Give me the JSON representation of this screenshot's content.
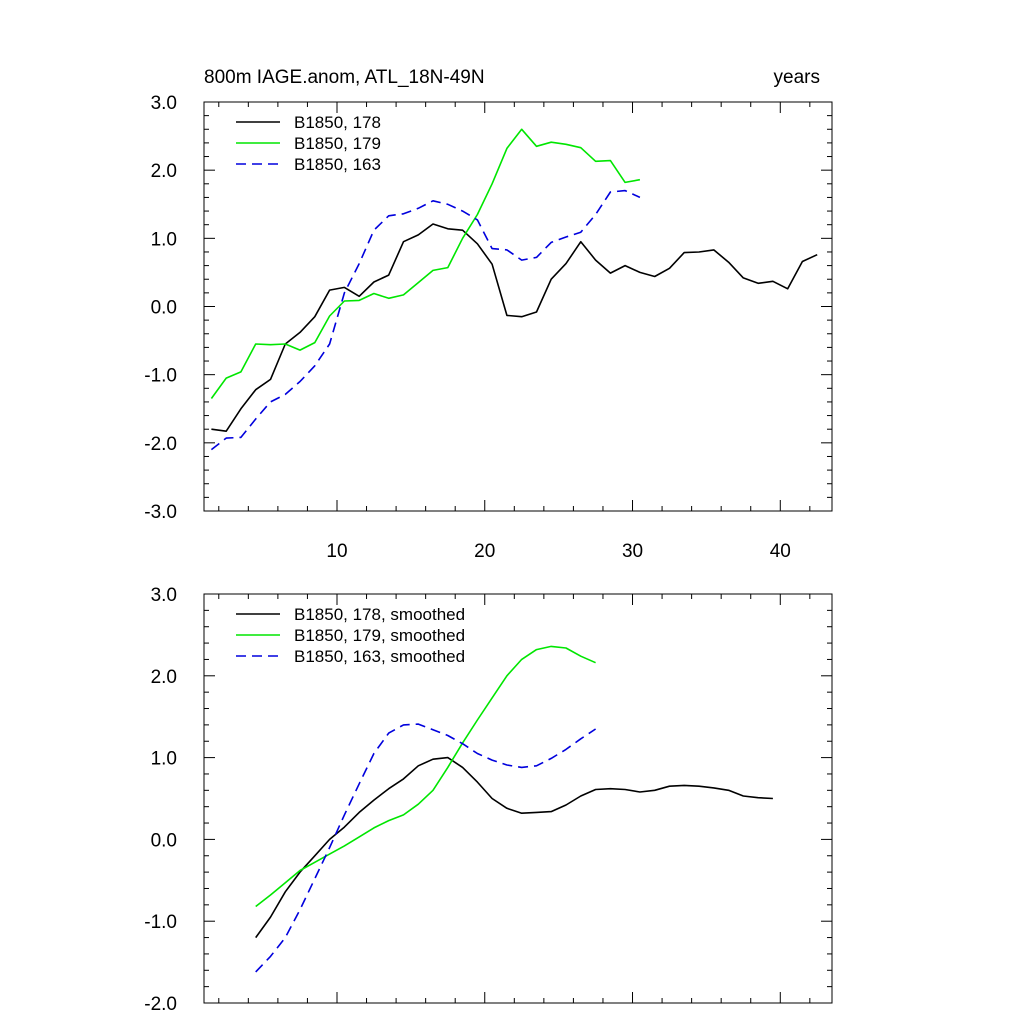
{
  "chart_data": [
    {
      "type": "line",
      "title_left": "800m IAGE.anom, ATL_18N-49N",
      "title_right": "years",
      "xlim": [
        1,
        43.5
      ],
      "ylim": [
        -3.0,
        3.0
      ],
      "x_major_ticks": [
        10,
        20,
        30,
        40
      ],
      "x_tick_labels": [
        "10",
        "20",
        "30",
        "40"
      ],
      "y_major_ticks": [
        -3.0,
        -2.0,
        -1.0,
        0.0,
        1.0,
        2.0,
        3.0
      ],
      "y_tick_labels": [
        "-3.0",
        "-2.0",
        "-1.0",
        "0.0",
        "1.0",
        "2.0",
        "3.0"
      ],
      "legend_position": "top-left",
      "grid": false,
      "series": [
        {
          "name": "B1850, 178",
          "color": "#000000",
          "dash": "solid",
          "x": [
            1.5,
            2.5,
            3.5,
            4.5,
            5.5,
            6.5,
            7.5,
            8.5,
            9.5,
            10.5,
            11.5,
            12.5,
            13.5,
            14.5,
            15.5,
            16.5,
            17.5,
            18.5,
            19.5,
            20.5,
            21.5,
            22.5,
            23.5,
            24.5,
            25.5,
            26.5,
            27.5,
            28.5,
            29.5,
            30.5,
            31.5,
            32.5,
            33.5,
            34.5,
            35.5,
            36.5,
            37.5,
            38.5,
            39.5,
            40.5,
            41.5,
            42.5
          ],
          "y": [
            -1.8,
            -1.83,
            -1.5,
            -1.22,
            -1.07,
            -0.55,
            -0.38,
            -0.15,
            0.24,
            0.28,
            0.15,
            0.36,
            0.46,
            0.95,
            1.05,
            1.21,
            1.14,
            1.12,
            0.92,
            0.62,
            -0.13,
            -0.15,
            -0.08,
            0.4,
            0.63,
            0.95,
            0.68,
            0.49,
            0.6,
            0.5,
            0.44,
            0.56,
            0.79,
            0.8,
            0.83,
            0.65,
            0.42,
            0.34,
            0.37,
            0.26,
            0.66,
            0.76
          ]
        },
        {
          "name": "B1850, 179",
          "color": "#00e600",
          "dash": "solid",
          "x": [
            1.5,
            2.5,
            3.5,
            4.5,
            5.5,
            6.5,
            7.5,
            8.5,
            9.5,
            10.5,
            11.5,
            12.5,
            13.5,
            14.5,
            15.5,
            16.5,
            17.5,
            18.5,
            19.5,
            20.5,
            21.5,
            22.5,
            23.5,
            24.5,
            25.5,
            26.5,
            27.5,
            28.5,
            29.5,
            30.5
          ],
          "y": [
            -1.35,
            -1.05,
            -0.96,
            -0.55,
            -0.56,
            -0.55,
            -0.64,
            -0.53,
            -0.14,
            0.08,
            0.09,
            0.19,
            0.12,
            0.17,
            0.35,
            0.53,
            0.57,
            1.0,
            1.35,
            1.8,
            2.32,
            2.6,
            2.35,
            2.41,
            2.38,
            2.33,
            2.13,
            2.14,
            1.82,
            1.86
          ]
        },
        {
          "name": "B1850, 163",
          "color": "#0000dd",
          "dash": "dashed",
          "x": [
            1.5,
            2.5,
            3.5,
            4.5,
            5.5,
            6.5,
            7.5,
            8.5,
            9.5,
            10.5,
            11.5,
            12.5,
            13.5,
            14.5,
            15.5,
            16.5,
            17.5,
            18.5,
            19.5,
            20.5,
            21.5,
            22.5,
            23.5,
            24.5,
            25.5,
            26.5,
            27.5,
            28.5,
            29.5,
            30.5
          ],
          "y": [
            -2.1,
            -1.93,
            -1.92,
            -1.65,
            -1.4,
            -1.29,
            -1.1,
            -0.87,
            -0.55,
            0.2,
            0.63,
            1.12,
            1.33,
            1.36,
            1.44,
            1.55,
            1.5,
            1.4,
            1.27,
            0.85,
            0.83,
            0.68,
            0.72,
            0.94,
            1.02,
            1.09,
            1.35,
            1.68,
            1.7,
            1.6
          ]
        }
      ]
    },
    {
      "type": "line",
      "xlim": [
        1,
        43.5
      ],
      "ylim": [
        -2.0,
        3.0
      ],
      "x_major_ticks": [
        10,
        20,
        30,
        40
      ],
      "y_major_ticks": [
        -2.0,
        -1.0,
        0.0,
        1.0,
        2.0,
        3.0
      ],
      "y_tick_labels": [
        "-2.0",
        "-1.0",
        "0.0",
        "1.0",
        "2.0",
        "3.0"
      ],
      "legend_position": "top-left",
      "grid": false,
      "series": [
        {
          "name": "B1850, 178, smoothed",
          "color": "#000000",
          "dash": "solid",
          "x": [
            4.5,
            5.5,
            6.5,
            7.5,
            8.5,
            9.5,
            10.5,
            11.5,
            12.5,
            13.5,
            14.5,
            15.5,
            16.5,
            17.5,
            18.5,
            19.5,
            20.5,
            21.5,
            22.5,
            23.5,
            24.5,
            25.5,
            26.5,
            27.5,
            28.5,
            29.5,
            30.5,
            31.5,
            32.5,
            33.5,
            34.5,
            35.5,
            36.5,
            37.5,
            38.5,
            39.5
          ],
          "y": [
            -1.2,
            -0.95,
            -0.64,
            -0.4,
            -0.2,
            0.0,
            0.15,
            0.33,
            0.48,
            0.62,
            0.74,
            0.9,
            0.98,
            1.0,
            0.88,
            0.7,
            0.5,
            0.38,
            0.32,
            0.33,
            0.34,
            0.42,
            0.53,
            0.61,
            0.62,
            0.61,
            0.58,
            0.6,
            0.65,
            0.66,
            0.65,
            0.63,
            0.6,
            0.53,
            0.51,
            0.5
          ]
        },
        {
          "name": "B1850, 179, smoothed",
          "color": "#00e600",
          "dash": "solid",
          "x": [
            4.5,
            5.5,
            6.5,
            7.5,
            8.5,
            9.5,
            10.5,
            11.5,
            12.5,
            13.5,
            14.5,
            15.5,
            16.5,
            17.5,
            18.5,
            19.5,
            20.5,
            21.5,
            22.5,
            23.5,
            24.5,
            25.5,
            26.5,
            27.5
          ],
          "y": [
            -0.82,
            -0.68,
            -0.53,
            -0.38,
            -0.28,
            -0.18,
            -0.08,
            0.03,
            0.14,
            0.23,
            0.3,
            0.43,
            0.6,
            0.88,
            1.18,
            1.46,
            1.73,
            2.0,
            2.2,
            2.32,
            2.36,
            2.34,
            2.24,
            2.16
          ]
        },
        {
          "name": "B1850, 163, smoothed",
          "color": "#0000dd",
          "dash": "dashed",
          "x": [
            4.5,
            5.5,
            6.5,
            7.5,
            8.5,
            9.5,
            10.5,
            11.5,
            12.5,
            13.5,
            14.5,
            15.5,
            16.5,
            17.5,
            18.5,
            19.5,
            20.5,
            21.5,
            22.5,
            23.5,
            24.5,
            25.5,
            26.5,
            27.5
          ],
          "y": [
            -1.62,
            -1.43,
            -1.2,
            -0.86,
            -0.48,
            -0.1,
            0.3,
            0.68,
            1.05,
            1.3,
            1.4,
            1.41,
            1.34,
            1.27,
            1.17,
            1.05,
            0.97,
            0.91,
            0.88,
            0.9,
            0.99,
            1.1,
            1.23,
            1.35
          ]
        }
      ]
    }
  ]
}
